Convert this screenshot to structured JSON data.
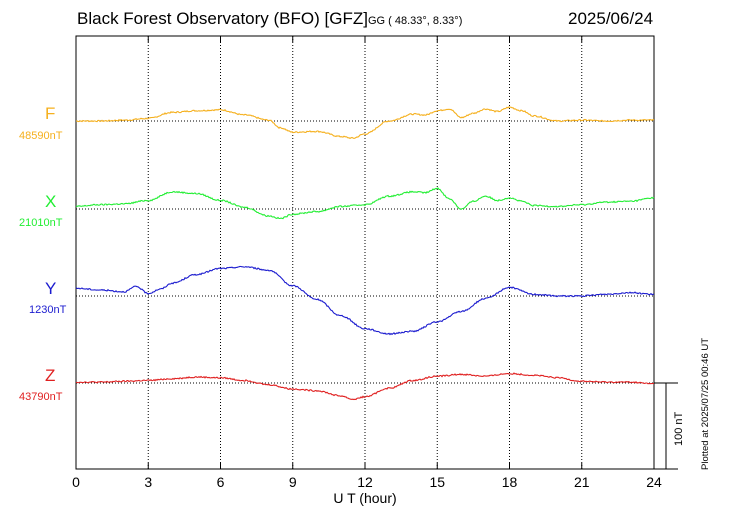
{
  "header": {
    "station": "Black Forest Observatory (BFO)",
    "institute": "[GFZ]",
    "coords": "GG ( 48.33°,   8.33°)",
    "date": "2025/06/24"
  },
  "footer": {
    "plotted_note": "Plotted at 2025/07/25 00:46 UT",
    "scale_label": "100 nT"
  },
  "chart_data": {
    "type": "line",
    "title": "Black Forest Observatory (BFO) [GFZ] 2025/06/24",
    "xlabel": "U T (hour)",
    "ylabel": "",
    "xlim": [
      0,
      24
    ],
    "x_ticks": [
      0,
      3,
      6,
      9,
      12,
      15,
      18,
      21,
      24
    ],
    "grid": true,
    "scale_bar_nT": 100,
    "series": [
      {
        "name": "F",
        "baseline_label": "48590nT",
        "baseline_nT": 48590,
        "color": "#f5b01e",
        "hours": [
          0,
          1,
          2,
          3,
          4,
          5,
          6,
          7,
          8,
          8.5,
          9,
          10,
          11,
          11.5,
          12,
          13,
          14,
          14.5,
          15,
          15.5,
          16,
          16.5,
          17,
          17.5,
          18,
          18.5,
          19,
          20,
          21,
          22,
          23,
          24
        ],
        "values": [
          0,
          0,
          1,
          3,
          10,
          12,
          13,
          7,
          1,
          -8,
          -13,
          -12,
          -18,
          -20,
          -15,
          0,
          8,
          7,
          12,
          14,
          4,
          9,
          14,
          11,
          16,
          12,
          6,
          0,
          1,
          0,
          1,
          1
        ]
      },
      {
        "name": "X",
        "baseline_label": "21010nT",
        "baseline_nT": 21010,
        "color": "#22ee33",
        "hours": [
          0,
          1,
          2,
          3,
          4,
          5,
          6,
          7,
          8,
          8.5,
          9,
          10,
          11,
          12,
          13,
          14,
          14.5,
          15,
          15.5,
          16,
          16.5,
          17,
          17.5,
          18,
          18.5,
          19,
          20,
          21,
          22,
          23,
          24
        ],
        "values": [
          3,
          5,
          6,
          10,
          20,
          18,
          10,
          2,
          -8,
          -11,
          -6,
          -3,
          3,
          5,
          15,
          20,
          19,
          24,
          12,
          0,
          9,
          15,
          10,
          13,
          9,
          4,
          3,
          5,
          8,
          9,
          13
        ]
      },
      {
        "name": "Y",
        "baseline_label": "1230nT",
        "baseline_nT": 1230,
        "color": "#1c1ccf",
        "hours": [
          0,
          1,
          2,
          2.5,
          3,
          3.5,
          4,
          5,
          6,
          7,
          8,
          9,
          10,
          11,
          12,
          13,
          14,
          15,
          16,
          17,
          18,
          19,
          20,
          21,
          22,
          23,
          24
        ],
        "values": [
          9,
          7,
          5,
          11,
          3,
          8,
          15,
          25,
          32,
          34,
          30,
          12,
          -4,
          -23,
          -38,
          -44,
          -41,
          -30,
          -18,
          -3,
          10,
          2,
          0,
          0,
          2,
          4,
          2
        ]
      },
      {
        "name": "Z",
        "baseline_label": "43790nT",
        "baseline_nT": 43790,
        "color": "#e02020",
        "hours": [
          0,
          1,
          2,
          3,
          4,
          5,
          6,
          7,
          8,
          9,
          10,
          11,
          11.5,
          12,
          13,
          14,
          15,
          16,
          17,
          18,
          19,
          20,
          21,
          22,
          23,
          24
        ],
        "values": [
          1,
          1,
          2,
          3,
          5,
          7,
          6,
          3,
          -2,
          -7,
          -9,
          -15,
          -19,
          -16,
          -6,
          3,
          8,
          10,
          8,
          11,
          9,
          6,
          2,
          1,
          1,
          -1
        ]
      }
    ]
  }
}
